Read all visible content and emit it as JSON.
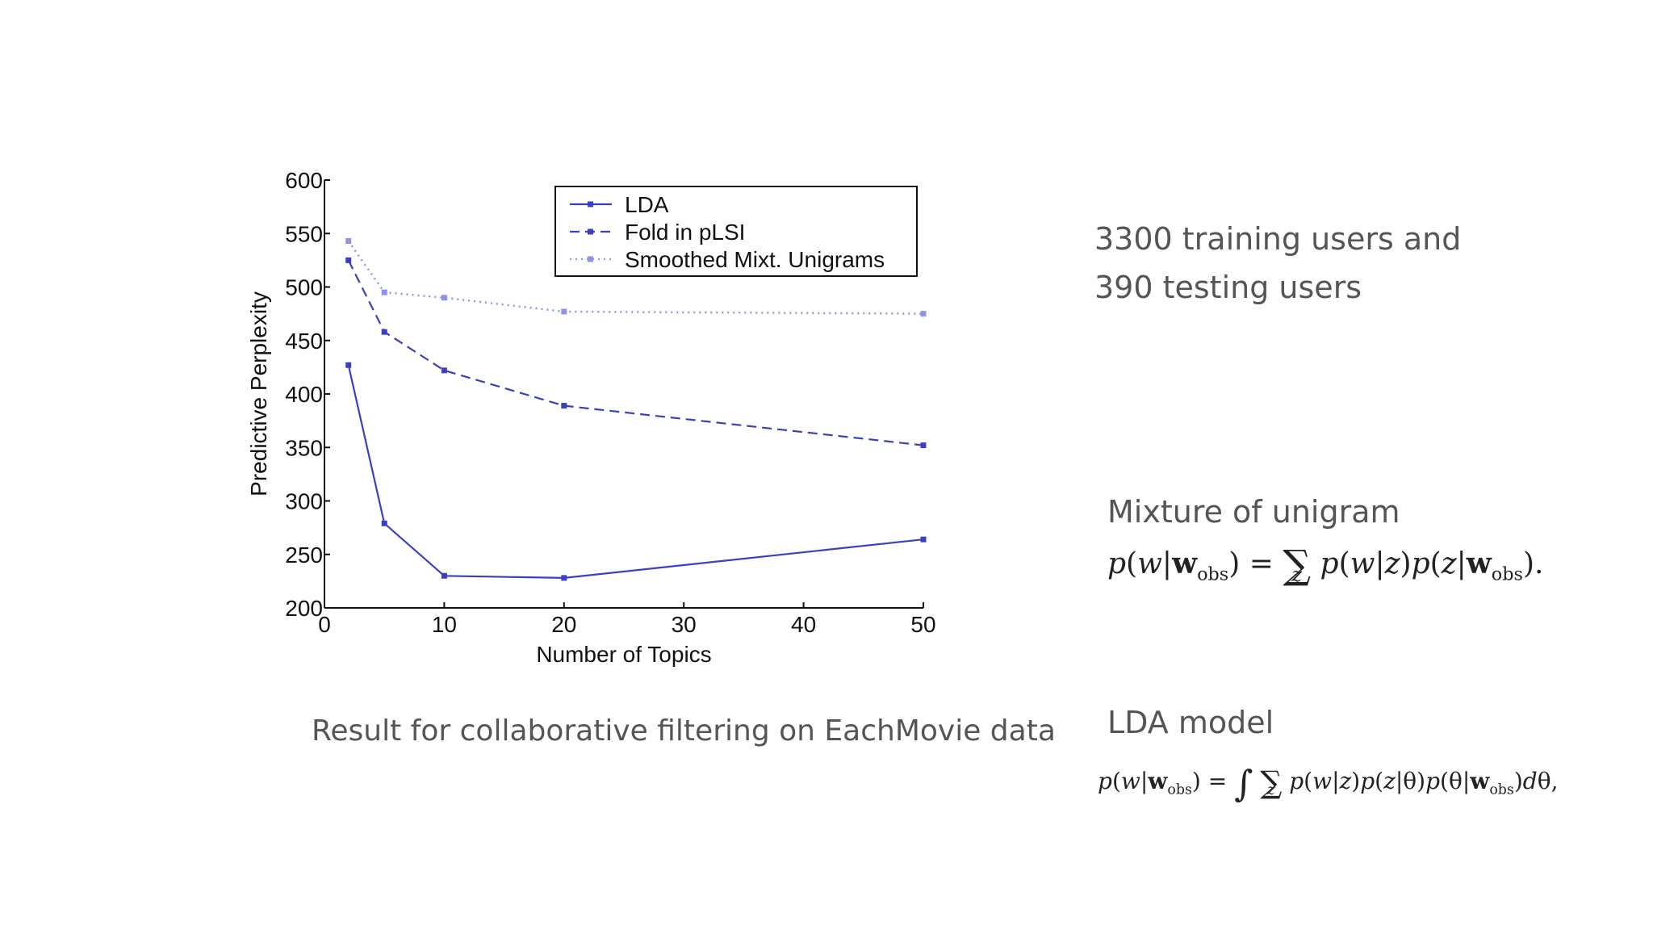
{
  "chart_data": {
    "type": "line",
    "x_axis": {
      "label": "Number of Topics",
      "ticks": [
        "0",
        "10",
        "20",
        "30",
        "40",
        "50"
      ],
      "range": [
        0,
        50
      ]
    },
    "y_axis": {
      "label": "Predictive Perplexity",
      "ticks": [
        "200",
        "250",
        "300",
        "350",
        "400",
        "450",
        "500",
        "550",
        "600"
      ],
      "range": [
        200,
        600
      ]
    },
    "legend_position": "top-right",
    "series": [
      {
        "name": "LDA",
        "style": "solid",
        "color": "#3b3fc2",
        "x": [
          2,
          5,
          10,
          20,
          50
        ],
        "y": [
          427,
          279,
          230,
          228,
          264
        ]
      },
      {
        "name": "Fold in pLSI",
        "style": "dashed",
        "color": "#3b3fc2",
        "x": [
          2,
          5,
          10,
          20,
          50
        ],
        "y": [
          525,
          458,
          422,
          389,
          352
        ]
      },
      {
        "name": "Smoothed Mixt. Unigrams",
        "style": "dotted",
        "color": "#8f92e6",
        "x": [
          2,
          5,
          10,
          20,
          50
        ],
        "y": [
          543,
          495,
          490,
          477,
          475
        ]
      }
    ]
  },
  "caption": "Result for collaborative filtering on EachMovie data",
  "users_line1": "3300 training users and",
  "users_line2": "390 testing users",
  "mixture": {
    "heading": "Mixture of unigram",
    "p": "p",
    "w": "w",
    "wbold": "w",
    "obs": "obs",
    "eq": "=",
    "sigma": "∑",
    "z": "z"
  },
  "lda": {
    "heading": "LDA model",
    "p": "p",
    "w": "w",
    "wbold": "w",
    "obs": "obs",
    "eq": "=",
    "integral": "∫",
    "sigma": "∑",
    "z": "z",
    "theta": "θ",
    "d": "d"
  }
}
